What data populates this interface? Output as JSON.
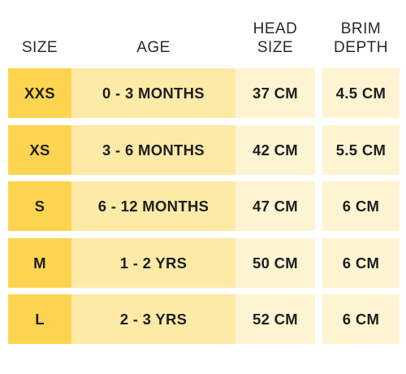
{
  "headers": {
    "size": "SIZE",
    "age": "AGE",
    "head_size": "HEAD\nSIZE",
    "brim_depth": "BRIM\nDEPTH"
  },
  "rows": [
    {
      "size": "XXS",
      "age": "0 - 3 MONTHS",
      "head_size": "37 CM",
      "brim_depth": "4.5 CM"
    },
    {
      "size": "XS",
      "age": "3 - 6 MONTHS",
      "head_size": "42 CM",
      "brim_depth": "5.5 CM"
    },
    {
      "size": "S",
      "age": "6 - 12 MONTHS",
      "head_size": "47 CM",
      "brim_depth": "6 CM"
    },
    {
      "size": "M",
      "age": "1 - 2 YRS",
      "head_size": "50 CM",
      "brim_depth": "6 CM"
    },
    {
      "size": "L",
      "age": "2 - 3 YRS",
      "head_size": "52 CM",
      "brim_depth": "6 CM"
    }
  ],
  "colors": {
    "size_column": "#fdd44f",
    "age_column": "#fdeaa7",
    "measure_columns": "#fef4d2"
  }
}
